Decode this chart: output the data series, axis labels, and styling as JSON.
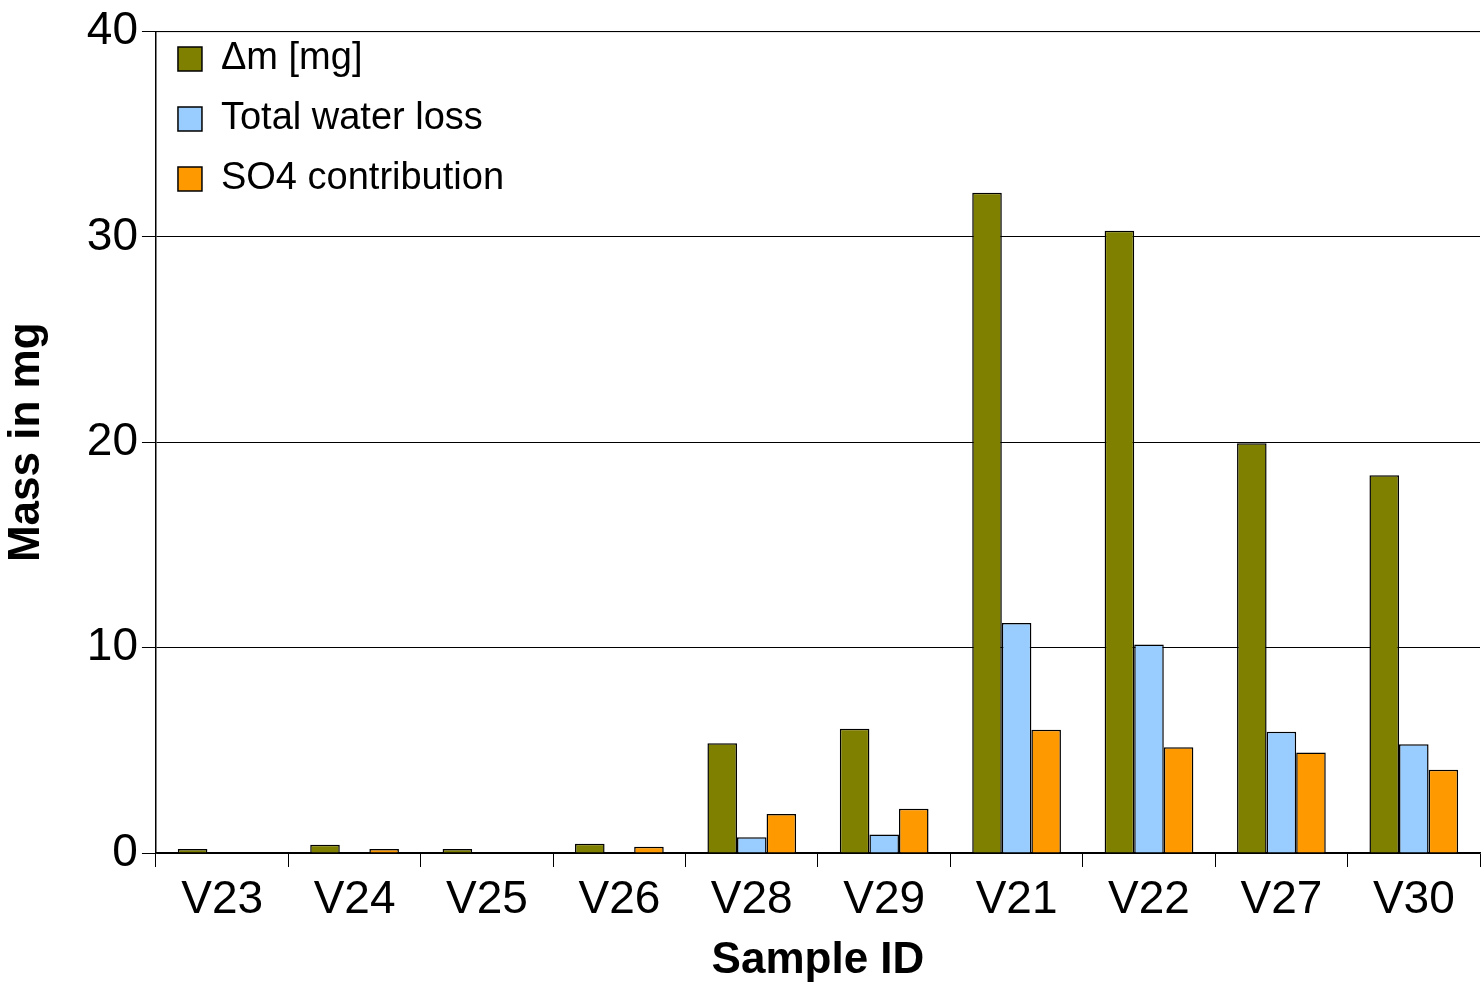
{
  "chart_data": {
    "type": "bar",
    "xlabel": "Sample ID",
    "ylabel": "Mass in mg",
    "categories": [
      "V23",
      "V24",
      "V25",
      "V26",
      "V28",
      "V29",
      "V21",
      "V22",
      "V27",
      "V30"
    ],
    "series": [
      {
        "name": "Δm [mg]",
        "color": "#808000",
        "values": [
          0.2,
          0.4,
          0.2,
          0.45,
          5.35,
          6.05,
          32.15,
          30.3,
          19.95,
          18.4
        ]
      },
      {
        "name": "Total water loss",
        "color": "#99ccff",
        "values": [
          null,
          null,
          null,
          null,
          0.77,
          0.9,
          11.2,
          10.15,
          5.9,
          5.3
        ]
      },
      {
        "name": "SO4 contribution",
        "color": "#ff9900",
        "values": [
          null,
          0.2,
          null,
          0.3,
          1.9,
          2.15,
          6.0,
          5.15,
          4.9,
          4.05
        ]
      }
    ],
    "ylim": [
      0,
      40
    ],
    "yticks": [
      0,
      10,
      20,
      30,
      40
    ],
    "grid": "y",
    "legend": "top left"
  }
}
